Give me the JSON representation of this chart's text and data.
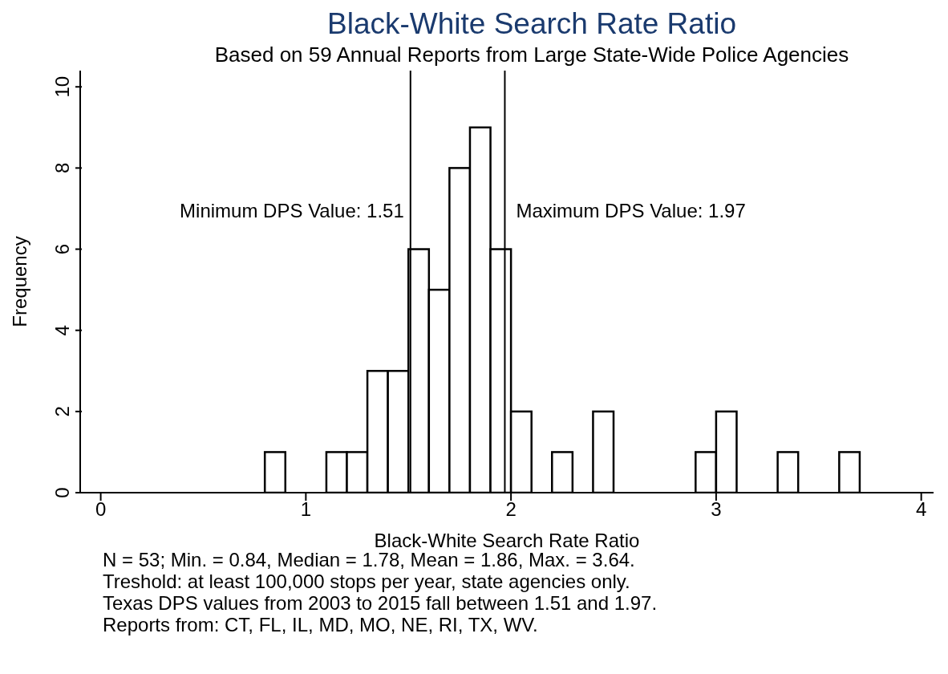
{
  "chart_data": {
    "type": "histogram",
    "title": "Black-White Search Rate Ratio",
    "subtitle": "Based on 59 Annual Reports from Large State-Wide Police Agencies",
    "xlabel": "Black-White Search Rate Ratio",
    "ylabel": "Frequency",
    "bins": [
      0.8,
      0.9,
      1.0,
      1.1,
      1.2,
      1.3,
      1.4,
      1.5,
      1.6,
      1.7,
      1.8,
      1.9,
      2.0,
      2.1,
      2.2,
      2.3,
      2.4,
      2.5,
      2.6,
      2.7,
      2.8,
      2.9,
      3.0,
      3.1,
      3.2,
      3.3,
      3.4,
      3.5,
      3.6,
      3.7
    ],
    "values": [
      1,
      0,
      0,
      1,
      1,
      3,
      3,
      6,
      5,
      8,
      9,
      6,
      2,
      0,
      1,
      0,
      2,
      0,
      0,
      0,
      0,
      1,
      2,
      0,
      0,
      1,
      0,
      0,
      1
    ],
    "color": "#ffffff",
    "xlim": [
      -0.1,
      4.06
    ],
    "xticks": [
      0,
      1,
      2,
      3,
      4
    ],
    "ylim": [
      0,
      10.4
    ],
    "yticks": [
      0,
      2,
      4,
      6,
      8,
      10
    ],
    "ref_lines": [
      {
        "axis": "x",
        "value": 1.51,
        "label": "Minimum DPS Value: 1.51",
        "color": "#000000"
      },
      {
        "axis": "x",
        "value": 1.97,
        "label": "Maximum DPS Value: 1.97",
        "color": "#000000"
      }
    ],
    "annotations": [
      "N = 53; Min. = 0.84, Median = 1.78, Mean = 1.86, Max. = 3.64.",
      "Treshold: at least 100,000 stops per year, state agencies only.",
      "Texas DPS values from 2003 to 2015 fall between 1.51 and 1.97.",
      "Reports from: CT, FL, IL, MD, MO, NE, RI, TX, WV."
    ]
  }
}
